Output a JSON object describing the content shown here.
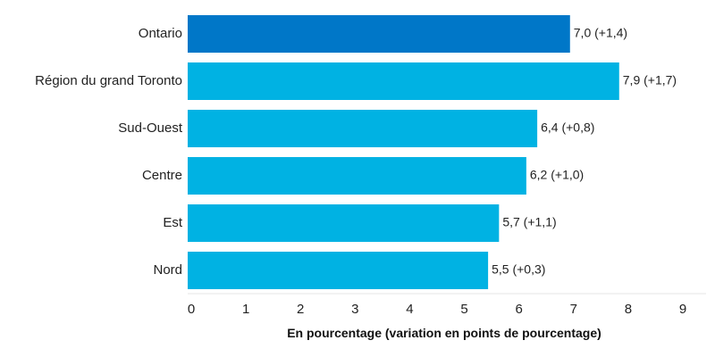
{
  "chart_data": {
    "type": "bar",
    "orientation": "horizontal",
    "categories": [
      "Ontario",
      "Région du grand Toronto",
      "Sud-Ouest",
      "Centre",
      "Est",
      "Nord"
    ],
    "values": [
      7.0,
      7.9,
      6.4,
      6.2,
      5.7,
      5.5
    ],
    "data_labels": [
      "7,0 (+1,4)",
      "7,9 (+1,7)",
      "6,4 (+0,8)",
      "6,2 (+1,0)",
      "5,7 (+1,1)",
      "5,5 (+0,3)"
    ],
    "xlabel": "En pourcentage (variation en points de pourcentage)",
    "ylabel": "",
    "title": "",
    "xlim": [
      0,
      9
    ],
    "x_ticks": [
      0,
      1,
      2,
      3,
      4,
      5,
      6,
      7,
      8,
      9
    ],
    "x_tick_labels": [
      "0",
      "1",
      "2",
      "3",
      "4",
      "5",
      "6",
      "7",
      "8",
      "9"
    ],
    "grid": false,
    "colors": {
      "highlight": "#0077c8",
      "bar": "#00b2e3",
      "axis": "#e6e6e6"
    },
    "highlight_index": 0
  }
}
